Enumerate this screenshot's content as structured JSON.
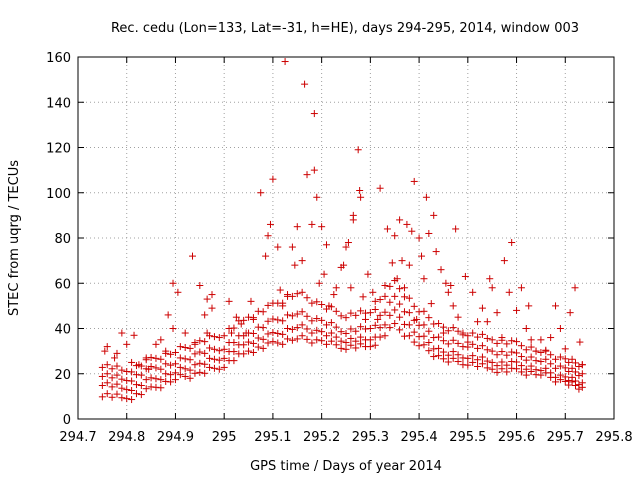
{
  "chart_data": {
    "type": "scatter",
    "title": "Rec. cedu (Lon=133, Lat=-31, h=HE), days 294-295, 2014, window 003",
    "xlabel": "GPS time / Days of year 2014",
    "ylabel": "STEC from uqrg / TECUs",
    "xlim": [
      294.7,
      295.8
    ],
    "ylim": [
      0,
      160
    ],
    "xticks": [
      294.7,
      294.8,
      294.9,
      295,
      295.1,
      295.2,
      295.3,
      295.4,
      295.5,
      295.6,
      295.7,
      295.8
    ],
    "xtick_labels": [
      "294.7",
      "294.8",
      "294.9",
      "295",
      "295.1",
      "295.2",
      "295.3",
      "295.4",
      "295.5",
      "295.6",
      "295.7",
      "295.8"
    ],
    "yticks": [
      0,
      20,
      40,
      60,
      80,
      100,
      120,
      140,
      160
    ],
    "ytick_labels": [
      "0",
      "20",
      "40",
      "60",
      "80",
      "100",
      "120",
      "140",
      "160"
    ],
    "grid": true,
    "legend": "none",
    "marker": "+",
    "color": "#cc0000",
    "points": [
      [
        294.755,
        30
      ],
      [
        294.76,
        32
      ],
      [
        294.775,
        27
      ],
      [
        294.78,
        29
      ],
      [
        294.79,
        38
      ],
      [
        294.8,
        33
      ],
      [
        294.815,
        37
      ],
      [
        294.81,
        25
      ],
      [
        294.825,
        24
      ],
      [
        294.84,
        27
      ],
      [
        294.845,
        22
      ],
      [
        294.86,
        33
      ],
      [
        294.87,
        35
      ],
      [
        294.88,
        30
      ],
      [
        294.885,
        46
      ],
      [
        294.895,
        40
      ],
      [
        294.895,
        60
      ],
      [
        294.905,
        56
      ],
      [
        294.92,
        38
      ],
      [
        294.935,
        72
      ],
      [
        294.94,
        33
      ],
      [
        294.95,
        59
      ],
      [
        294.96,
        46
      ],
      [
        294.965,
        53
      ],
      [
        294.975,
        55
      ],
      [
        294.975,
        49
      ],
      [
        294.965,
        38
      ],
      [
        295.01,
        52
      ],
      [
        295.015,
        38
      ],
      [
        295.025,
        45
      ],
      [
        295.035,
        42
      ],
      [
        295.045,
        38
      ],
      [
        295.055,
        52
      ],
      [
        295.06,
        44
      ],
      [
        295.075,
        100
      ],
      [
        295.085,
        72
      ],
      [
        295.09,
        81
      ],
      [
        295.095,
        86
      ],
      [
        295.1,
        106
      ],
      [
        295.11,
        76
      ],
      [
        295.115,
        57
      ],
      [
        295.12,
        50
      ],
      [
        295.125,
        158
      ],
      [
        295.13,
        55
      ],
      [
        295.14,
        76
      ],
      [
        295.145,
        68
      ],
      [
        295.15,
        85
      ],
      [
        295.16,
        70
      ],
      [
        295.165,
        148
      ],
      [
        295.17,
        108
      ],
      [
        295.18,
        86
      ],
      [
        295.185,
        110
      ],
      [
        295.185,
        135
      ],
      [
        295.19,
        98
      ],
      [
        295.195,
        60
      ],
      [
        295.2,
        85
      ],
      [
        295.205,
        64
      ],
      [
        295.21,
        77
      ],
      [
        295.215,
        50
      ],
      [
        295.225,
        55
      ],
      [
        295.23,
        58
      ],
      [
        295.24,
        67
      ],
      [
        295.245,
        68
      ],
      [
        295.25,
        76
      ],
      [
        295.255,
        78
      ],
      [
        295.26,
        58
      ],
      [
        295.265,
        90
      ],
      [
        295.265,
        88
      ],
      [
        295.275,
        119
      ],
      [
        295.278,
        101
      ],
      [
        295.28,
        98
      ],
      [
        295.285,
        54
      ],
      [
        295.29,
        44
      ],
      [
        295.295,
        64
      ],
      [
        295.305,
        56
      ],
      [
        295.31,
        52
      ],
      [
        295.315,
        44
      ],
      [
        295.32,
        102
      ],
      [
        295.33,
        59
      ],
      [
        295.335,
        84
      ],
      [
        295.345,
        69
      ],
      [
        295.35,
        81
      ],
      [
        295.355,
        62
      ],
      [
        295.36,
        88
      ],
      [
        295.365,
        70
      ],
      [
        295.37,
        58
      ],
      [
        295.375,
        86
      ],
      [
        295.38,
        68
      ],
      [
        295.385,
        83
      ],
      [
        295.39,
        105
      ],
      [
        295.395,
        44
      ],
      [
        295.4,
        80
      ],
      [
        295.405,
        72
      ],
      [
        295.41,
        62
      ],
      [
        295.415,
        98
      ],
      [
        295.42,
        82
      ],
      [
        295.425,
        51
      ],
      [
        295.43,
        90
      ],
      [
        295.435,
        74
      ],
      [
        295.445,
        66
      ],
      [
        295.45,
        38
      ],
      [
        295.455,
        60
      ],
      [
        295.46,
        56
      ],
      [
        295.465,
        59
      ],
      [
        295.47,
        50
      ],
      [
        295.475,
        84
      ],
      [
        295.48,
        45
      ],
      [
        295.49,
        38
      ],
      [
        295.495,
        63
      ],
      [
        295.5,
        34
      ],
      [
        295.51,
        56
      ],
      [
        295.52,
        43
      ],
      [
        295.53,
        49
      ],
      [
        295.54,
        43
      ],
      [
        295.545,
        62
      ],
      [
        295.55,
        58
      ],
      [
        295.56,
        47
      ],
      [
        295.57,
        36
      ],
      [
        295.575,
        70
      ],
      [
        295.585,
        56
      ],
      [
        295.59,
        78
      ],
      [
        295.6,
        48
      ],
      [
        295.61,
        58
      ],
      [
        295.62,
        40
      ],
      [
        295.625,
        50
      ],
      [
        295.63,
        35
      ],
      [
        295.64,
        30
      ],
      [
        295.65,
        35
      ],
      [
        295.66,
        30
      ],
      [
        295.67,
        36
      ],
      [
        295.68,
        50
      ],
      [
        295.69,
        40
      ],
      [
        295.7,
        31
      ],
      [
        295.71,
        47
      ],
      [
        295.72,
        58
      ],
      [
        295.73,
        34
      ],
      [
        295.735,
        24
      ]
    ],
    "bands": [
      [
        [
          294.75,
          11
        ],
        [
          294.8,
          9
        ],
        [
          294.85,
          13
        ],
        [
          294.9,
          18
        ],
        [
          294.95,
          20
        ],
        [
          295.0,
          24
        ],
        [
          295.05,
          30
        ],
        [
          295.1,
          33
        ],
        [
          295.15,
          36
        ],
        [
          295.2,
          34
        ],
        [
          295.25,
          32
        ],
        [
          295.3,
          32
        ],
        [
          295.35,
          41
        ],
        [
          295.4,
          33
        ],
        [
          295.45,
          26
        ],
        [
          295.5,
          25
        ],
        [
          295.55,
          22
        ],
        [
          295.6,
          21
        ],
        [
          295.65,
          20
        ],
        [
          295.7,
          16
        ],
        [
          295.735,
          14
        ]
      ],
      [
        [
          294.75,
          16
        ],
        [
          294.8,
          13
        ],
        [
          294.85,
          17
        ],
        [
          294.9,
          21
        ],
        [
          294.95,
          24
        ],
        [
          295.0,
          28
        ],
        [
          295.05,
          34
        ],
        [
          295.1,
          37
        ],
        [
          295.15,
          41
        ],
        [
          295.2,
          38
        ],
        [
          295.25,
          35
        ],
        [
          295.3,
          35
        ],
        [
          295.35,
          47
        ],
        [
          295.4,
          37
        ],
        [
          295.45,
          29
        ],
        [
          295.5,
          28
        ],
        [
          295.55,
          25
        ],
        [
          295.6,
          24
        ],
        [
          295.65,
          22
        ],
        [
          295.7,
          18
        ],
        [
          295.735,
          16
        ]
      ],
      [
        [
          294.75,
          20
        ],
        [
          294.8,
          17
        ],
        [
          294.85,
          22
        ],
        [
          294.9,
          25
        ],
        [
          294.95,
          29
        ],
        [
          295.0,
          32
        ],
        [
          295.05,
          38
        ],
        [
          295.1,
          43
        ],
        [
          295.15,
          47
        ],
        [
          295.2,
          43
        ],
        [
          295.25,
          39
        ],
        [
          295.3,
          40
        ],
        [
          295.35,
          53
        ],
        [
          295.4,
          42
        ],
        [
          295.45,
          34
        ],
        [
          295.5,
          33
        ],
        [
          295.55,
          30
        ],
        [
          295.6,
          28
        ],
        [
          295.65,
          26
        ],
        [
          295.7,
          22
        ],
        [
          295.735,
          20
        ]
      ],
      [
        [
          294.75,
          24
        ],
        [
          294.8,
          21
        ],
        [
          294.85,
          26
        ],
        [
          294.9,
          30
        ],
        [
          294.95,
          34
        ],
        [
          295.0,
          38
        ],
        [
          295.05,
          45
        ],
        [
          295.1,
          50
        ],
        [
          295.15,
          56
        ],
        [
          295.2,
          50
        ],
        [
          295.25,
          46
        ],
        [
          295.3,
          47
        ],
        [
          295.35,
          60
        ],
        [
          295.4,
          48
        ],
        [
          295.45,
          40
        ],
        [
          295.5,
          38
        ],
        [
          295.55,
          35
        ],
        [
          295.6,
          33
        ],
        [
          295.65,
          30
        ],
        [
          295.7,
          26
        ],
        [
          295.735,
          24
        ]
      ]
    ]
  }
}
